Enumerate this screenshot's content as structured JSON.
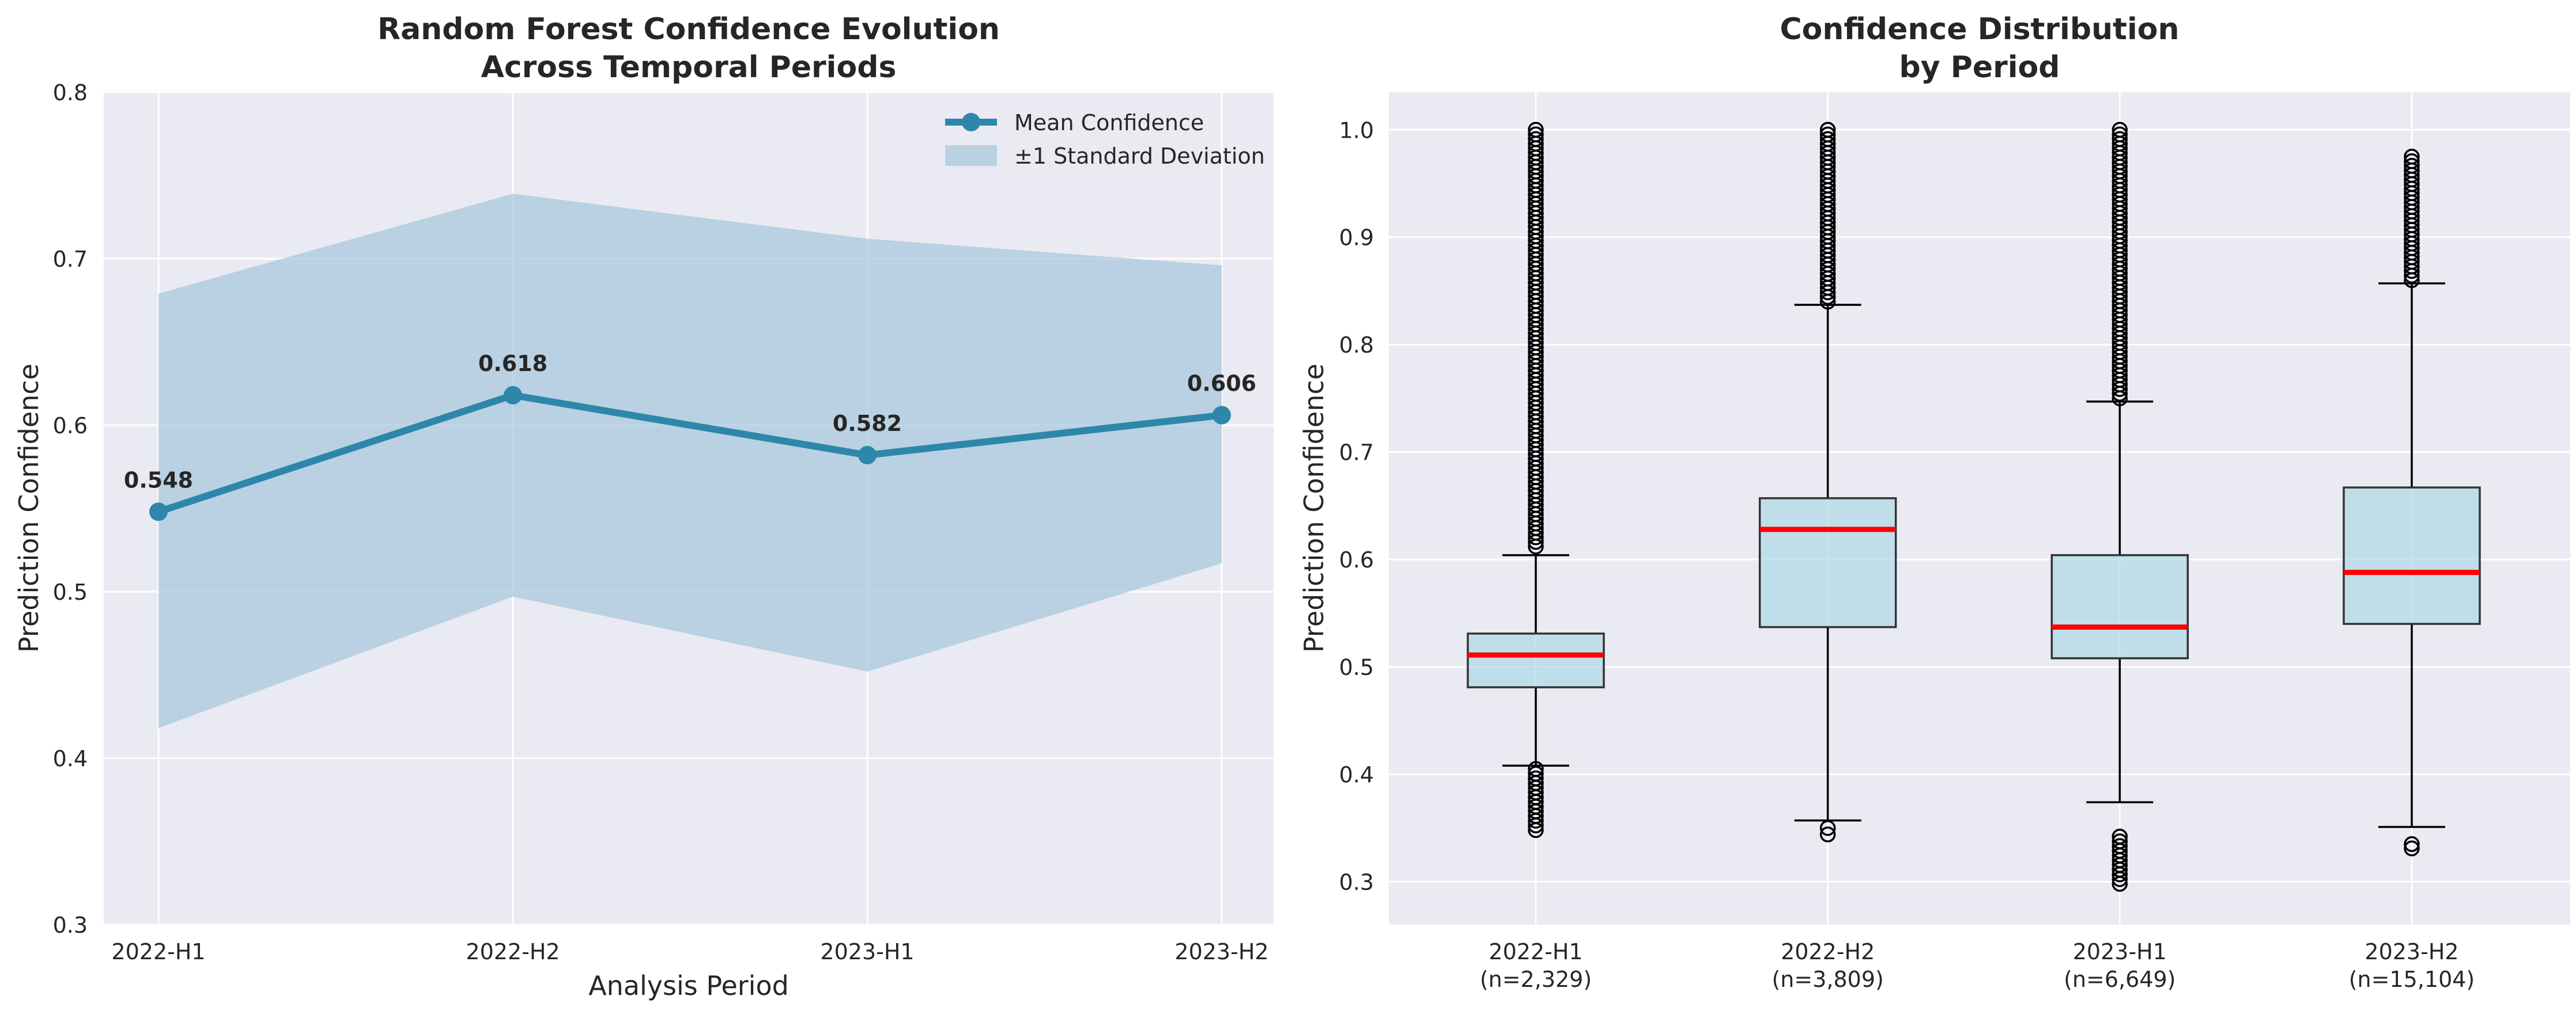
{
  "chart_data": [
    {
      "type": "line",
      "title_lines": [
        "Random Forest Confidence Evolution",
        "Across Temporal Periods"
      ],
      "xlabel": "Analysis Period",
      "ylabel": "Prediction Confidence",
      "categories": [
        "2022-H1",
        "2022-H2",
        "2023-H1",
        "2023-H2"
      ],
      "series": [
        {
          "name": "Mean Confidence",
          "values": [
            0.548,
            0.618,
            0.582,
            0.606
          ]
        }
      ],
      "band": {
        "name": "±1 Standard Deviation",
        "upper": [
          0.679,
          0.739,
          0.712,
          0.696
        ],
        "lower": [
          0.418,
          0.497,
          0.452,
          0.517
        ]
      },
      "data_labels": [
        "0.548",
        "0.618",
        "0.582",
        "0.606"
      ],
      "ylim": [
        0.3,
        0.8
      ],
      "yticks": [
        "0.3",
        "0.4",
        "0.5",
        "0.6",
        "0.7",
        "0.8"
      ],
      "grid": true,
      "legend_position": "top-right",
      "colors": {
        "line": "#2e86ab",
        "band": "#a8c8dc",
        "background": "#eaeaf2"
      }
    },
    {
      "type": "box",
      "title_lines": [
        "Confidence Distribution",
        "by Period"
      ],
      "xlabel": "",
      "ylabel": "Prediction Confidence",
      "categories": [
        "2022-H1",
        "2022-H2",
        "2023-H1",
        "2023-H2"
      ],
      "counts": [
        "(n=2,329)",
        "(n=3,809)",
        "(n=6,649)",
        "(n=15,104)"
      ],
      "boxes": [
        {
          "whisker_low": 0.408,
          "q1": 0.481,
          "median": 0.511,
          "q3": 0.531,
          "whisker_high": 0.604,
          "outliers_high": [
            0.612,
            1.0
          ],
          "outliers_low": [
            0.348,
            0.405
          ]
        },
        {
          "whisker_low": 0.357,
          "q1": 0.537,
          "median": 0.628,
          "q3": 0.657,
          "whisker_high": 0.837,
          "outliers_high": [
            0.84,
            1.0
          ],
          "outliers_low": [
            0.344,
            0.35
          ]
        },
        {
          "whisker_low": 0.374,
          "q1": 0.508,
          "median": 0.537,
          "q3": 0.604,
          "whisker_high": 0.747,
          "outliers_high": [
            0.75,
            1.0
          ],
          "outliers_low": [
            0.298,
            0.342
          ]
        },
        {
          "whisker_low": 0.351,
          "q1": 0.54,
          "median": 0.588,
          "q3": 0.667,
          "whisker_high": 0.857,
          "outliers_high": [
            0.86,
            0.975
          ],
          "outliers_low": [
            0.331,
            0.335
          ]
        }
      ],
      "ylim": [
        0.26,
        1.035
      ],
      "yticks": [
        "0.3",
        "0.4",
        "0.5",
        "0.6",
        "0.7",
        "0.8",
        "0.9",
        "1.0"
      ],
      "grid": true,
      "colors": {
        "box_fill": "#add8e6",
        "median": "#ff0000",
        "background": "#eaeaf2"
      }
    }
  ]
}
